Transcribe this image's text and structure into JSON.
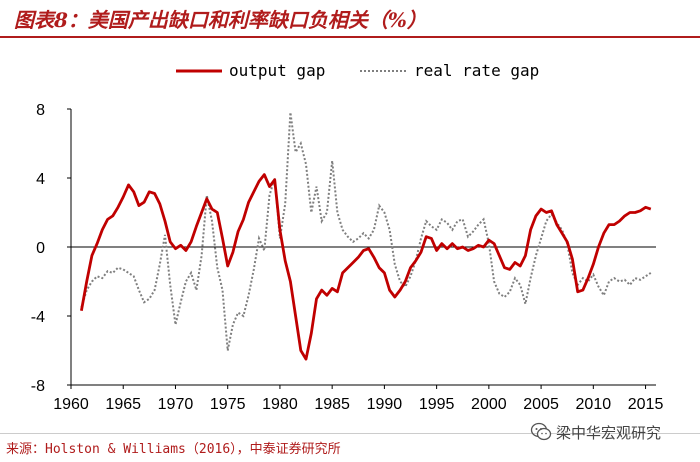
{
  "title": "图表8：美国产出缺口和利率缺口负相关（%）",
  "source_text": "来源：Holston & Williams（2016），中泰证券研究所",
  "watermark_text": "梁中华宏观研究",
  "chart_data": {
    "type": "line",
    "title": "",
    "xlabel": "",
    "ylabel": "",
    "xlim": [
      1960,
      2016
    ],
    "ylim": [
      -8,
      8
    ],
    "x_ticks": [
      1960,
      1965,
      1970,
      1975,
      1980,
      1985,
      1990,
      1995,
      2000,
      2005,
      2010,
      2015
    ],
    "y_ticks": [
      -8,
      -4,
      0,
      4,
      8
    ],
    "legend_position": "top-center",
    "series": [
      {
        "name": "output gap",
        "color": "#c00000",
        "style": "solid",
        "x": [
          1961,
          1961.5,
          1962,
          1962.5,
          1963,
          1963.5,
          1964,
          1964.5,
          1965,
          1965.5,
          1966,
          1966.5,
          1967,
          1967.5,
          1968,
          1968.5,
          1969,
          1969.5,
          1970,
          1970.5,
          1971,
          1971.5,
          1972,
          1972.5,
          1973,
          1973.5,
          1974,
          1974.5,
          1975,
          1975.5,
          1976,
          1976.5,
          1977,
          1977.5,
          1978,
          1978.5,
          1979,
          1979.5,
          1980,
          1980.5,
          1981,
          1981.5,
          1982,
          1982.5,
          1983,
          1983.5,
          1984,
          1984.5,
          1985,
          1985.5,
          1986,
          1986.5,
          1987,
          1987.5,
          1988,
          1988.5,
          1989,
          1989.5,
          1990,
          1990.5,
          1991,
          1991.5,
          1992,
          1992.5,
          1993,
          1993.5,
          1994,
          1994.5,
          1995,
          1995.5,
          1996,
          1996.5,
          1997,
          1997.5,
          1998,
          1998.5,
          1999,
          1999.5,
          2000,
          2000.5,
          2001,
          2001.5,
          2002,
          2002.5,
          2003,
          2003.5,
          2004,
          2004.5,
          2005,
          2005.5,
          2006,
          2006.5,
          2007,
          2007.5,
          2008,
          2008.5,
          2009,
          2009.5,
          2010,
          2010.5,
          2011,
          2011.5,
          2012,
          2012.5,
          2013,
          2013.5,
          2014,
          2014.5,
          2015,
          2015.5
        ],
        "values": [
          -3.7,
          -2.0,
          -0.5,
          0.2,
          1.0,
          1.6,
          1.8,
          2.3,
          2.9,
          3.6,
          3.2,
          2.4,
          2.6,
          3.2,
          3.1,
          2.5,
          1.5,
          0.3,
          -0.1,
          0.1,
          -0.2,
          0.3,
          1.2,
          2.0,
          2.8,
          2.2,
          2.0,
          0.5,
          -1.1,
          -0.3,
          0.9,
          1.6,
          2.6,
          3.2,
          3.8,
          4.2,
          3.5,
          3.9,
          1.0,
          -0.8,
          -2.0,
          -4.0,
          -6.0,
          -6.5,
          -5.0,
          -3.0,
          -2.5,
          -2.8,
          -2.4,
          -2.6,
          -1.5,
          -1.2,
          -0.9,
          -0.6,
          -0.2,
          -0.1,
          -0.6,
          -1.2,
          -1.5,
          -2.5,
          -2.9,
          -2.5,
          -2.0,
          -1.2,
          -0.8,
          -0.3,
          0.6,
          0.5,
          -0.2,
          0.2,
          -0.1,
          0.2,
          -0.1,
          0.0,
          -0.2,
          -0.1,
          0.1,
          0.0,
          0.4,
          0.2,
          -0.5,
          -1.2,
          -1.3,
          -0.9,
          -1.1,
          -0.5,
          1.0,
          1.8,
          2.2,
          2.0,
          2.1,
          1.3,
          0.8,
          0.3,
          -0.7,
          -2.6,
          -2.5,
          -1.8,
          -1.0,
          0.0,
          0.8,
          1.3,
          1.3,
          1.5,
          1.8,
          2.0,
          2.0,
          2.1,
          2.3,
          2.2
        ]
      },
      {
        "name": "real rate gap",
        "color": "#7f7f7f",
        "style": "dotted",
        "x": [
          1961,
          1961.5,
          1962,
          1962.5,
          1963,
          1963.5,
          1964,
          1964.5,
          1965,
          1965.5,
          1966,
          1966.5,
          1967,
          1967.5,
          1968,
          1968.5,
          1969,
          1969.5,
          1970,
          1970.5,
          1971,
          1971.5,
          1972,
          1972.5,
          1973,
          1973.5,
          1974,
          1974.5,
          1975,
          1975.5,
          1976,
          1976.5,
          1977,
          1977.5,
          1978,
          1978.5,
          1979,
          1979.5,
          1980,
          1980.5,
          1981,
          1981.5,
          1982,
          1982.5,
          1983,
          1983.5,
          1984,
          1984.5,
          1985,
          1985.5,
          1986,
          1986.5,
          1987,
          1987.5,
          1988,
          1988.5,
          1989,
          1989.5,
          1990,
          1990.5,
          1991,
          1991.5,
          1992,
          1992.5,
          1993,
          1993.5,
          1994,
          1994.5,
          1995,
          1995.5,
          1996,
          1996.5,
          1997,
          1997.5,
          1998,
          1998.5,
          1999,
          1999.5,
          2000,
          2000.5,
          2001,
          2001.5,
          2002,
          2002.5,
          2003,
          2003.5,
          2004,
          2004.5,
          2005,
          2005.5,
          2006,
          2006.5,
          2007,
          2007.5,
          2008,
          2008.5,
          2009,
          2009.5,
          2010,
          2010.5,
          2011,
          2011.5,
          2012,
          2012.5,
          2013,
          2013.5,
          2014,
          2014.5,
          2015,
          2015.5
        ],
        "values": [
          -3.5,
          -2.5,
          -2.0,
          -1.7,
          -1.8,
          -1.4,
          -1.5,
          -1.2,
          -1.3,
          -1.5,
          -1.7,
          -2.5,
          -3.2,
          -3.0,
          -2.5,
          -1.0,
          0.7,
          -2.2,
          -4.5,
          -3.2,
          -2.0,
          -1.5,
          -2.5,
          -0.5,
          3.0,
          1.5,
          -1.2,
          -2.5,
          -6.0,
          -4.5,
          -3.8,
          -4.0,
          -2.8,
          -1.3,
          0.5,
          -0.2,
          3.0,
          4.0,
          0.5,
          2.5,
          7.8,
          5.5,
          6.0,
          4.8,
          2.0,
          3.5,
          1.5,
          2.0,
          5.0,
          2.0,
          1.0,
          0.6,
          0.3,
          0.5,
          0.8,
          0.5,
          1.0,
          2.4,
          2.0,
          1.0,
          -1.0,
          -2.0,
          -2.3,
          -1.7,
          -0.8,
          0.5,
          1.5,
          1.2,
          1.0,
          1.6,
          1.4,
          1.0,
          1.5,
          1.6,
          0.6,
          0.9,
          1.3,
          1.6,
          0.2,
          -2.0,
          -2.7,
          -2.9,
          -2.6,
          -1.8,
          -2.2,
          -3.3,
          -1.8,
          -0.5,
          0.5,
          1.5,
          1.9,
          1.4,
          1.0,
          0.2,
          -1.5,
          -2.2,
          -1.8,
          -2.0,
          -1.6,
          -2.3,
          -2.8,
          -2.0,
          -1.8,
          -2.0,
          -1.9,
          -2.2,
          -1.8,
          -1.9,
          -1.7,
          -1.5
        ]
      }
    ]
  }
}
